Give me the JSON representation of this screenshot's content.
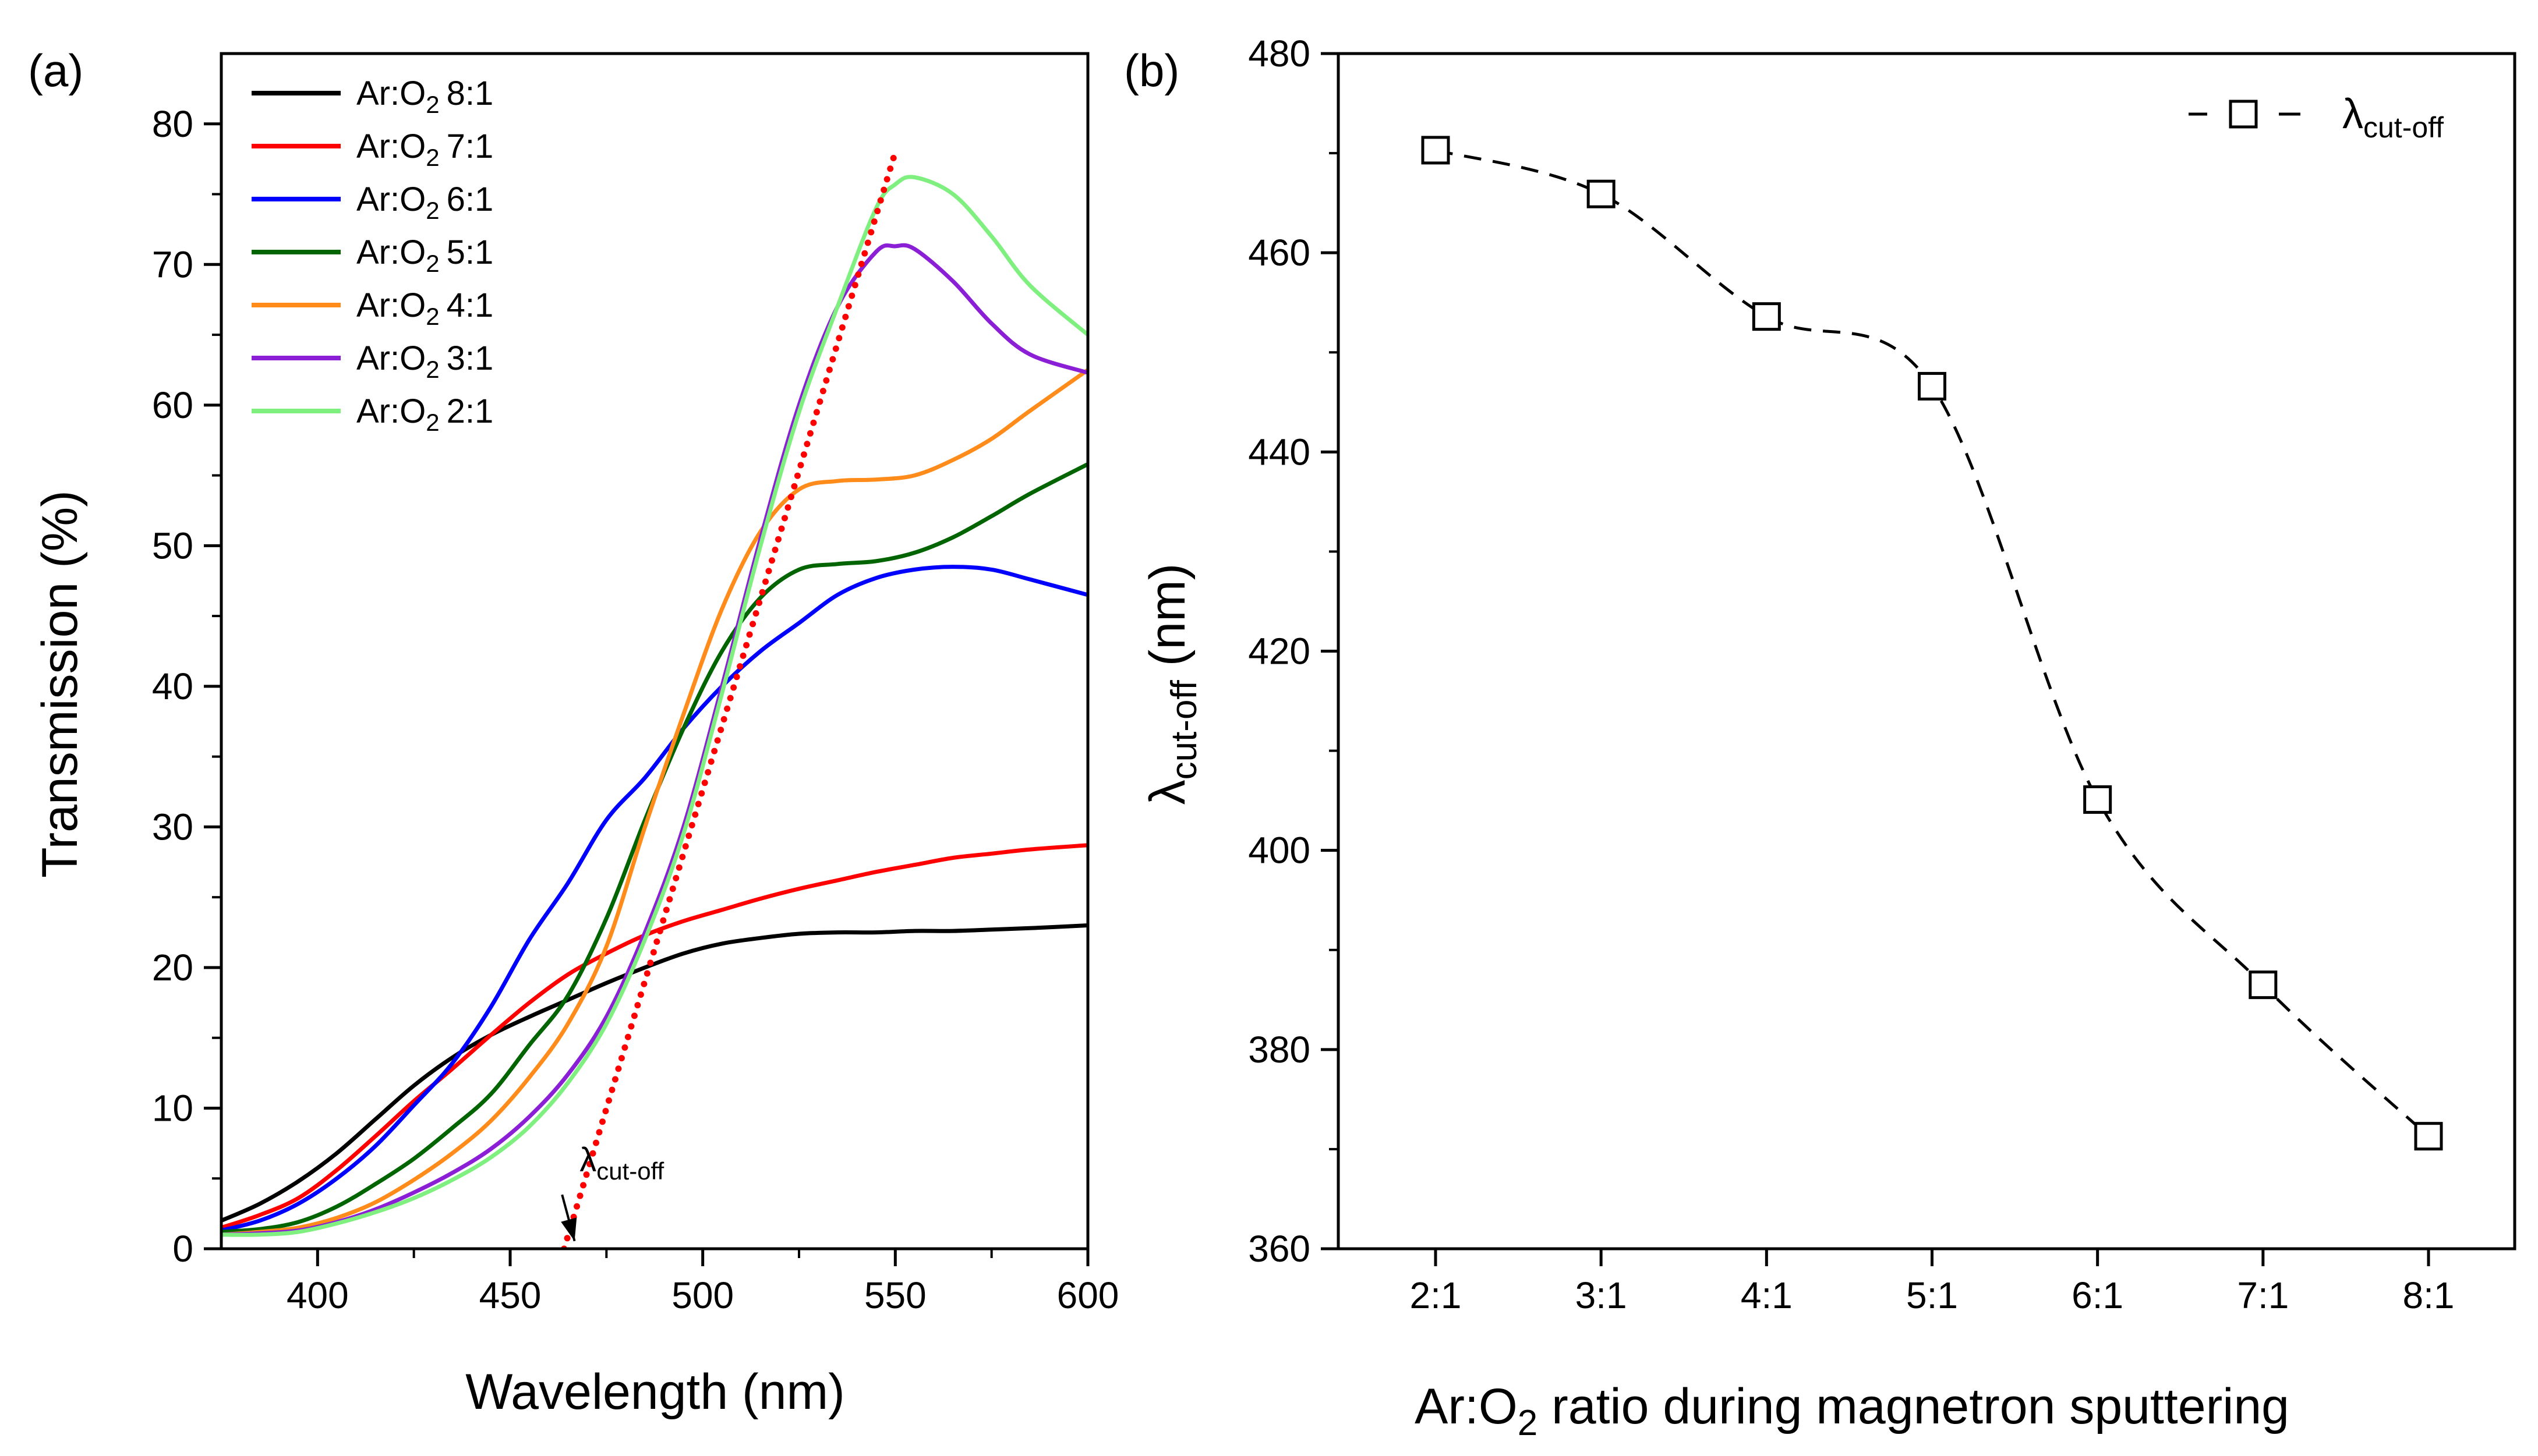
{
  "chart_data": [
    {
      "panel_label": "(a)",
      "type": "line",
      "xlabel": "Wavelength (nm)",
      "ylabel": "Transmission (%)",
      "xlim": [
        375,
        600
      ],
      "ylim": [
        0,
        85
      ],
      "xticks": [
        400,
        450,
        500,
        550,
        600
      ],
      "yticks": [
        0,
        10,
        20,
        30,
        40,
        50,
        60,
        70,
        80
      ],
      "grid": false,
      "legend_position": "top-left",
      "series": [
        {
          "name": "8:1",
          "color": "#000000",
          "x": [
            375,
            385,
            395,
            405,
            415,
            425,
            435,
            445,
            455,
            465,
            475,
            485,
            495,
            505,
            515,
            525,
            535,
            545,
            555,
            565,
            575,
            585,
            600
          ],
          "y": [
            2,
            3.2,
            4.8,
            6.8,
            9.2,
            11.6,
            13.6,
            15.2,
            16.5,
            17.7,
            18.9,
            20.0,
            21.0,
            21.7,
            22.1,
            22.4,
            22.5,
            22.5,
            22.6,
            22.6,
            22.7,
            22.8,
            23.0
          ]
        },
        {
          "name": "7:1",
          "color": "#ff0000",
          "x": [
            375,
            385,
            395,
            405,
            415,
            425,
            435,
            445,
            455,
            465,
            475,
            485,
            495,
            505,
            515,
            525,
            535,
            545,
            555,
            565,
            575,
            585,
            600
          ],
          "y": [
            1.5,
            2.4,
            3.6,
            5.6,
            8.0,
            10.5,
            12.8,
            15.2,
            17.5,
            19.5,
            21.0,
            22.3,
            23.3,
            24.1,
            24.9,
            25.6,
            26.2,
            26.8,
            27.3,
            27.8,
            28.1,
            28.4,
            28.7
          ]
        },
        {
          "name": "6:1",
          "color": "#0000ff",
          "x": [
            375,
            385,
            395,
            405,
            415,
            425,
            435,
            445,
            455,
            465,
            475,
            485,
            495,
            505,
            515,
            525,
            535,
            545,
            555,
            565,
            575,
            585,
            600
          ],
          "y": [
            1.3,
            2.0,
            3.2,
            5.0,
            7.3,
            10.2,
            13.2,
            17.2,
            22.0,
            26.0,
            30.5,
            33.5,
            37.0,
            40.0,
            42.5,
            44.5,
            46.5,
            47.7,
            48.3,
            48.5,
            48.3,
            47.6,
            46.5
          ]
        },
        {
          "name": "5:1",
          "color": "#006400",
          "x": [
            375,
            385,
            395,
            405,
            415,
            425,
            435,
            445,
            455,
            465,
            475,
            485,
            495,
            505,
            515,
            525,
            535,
            545,
            555,
            565,
            575,
            585,
            600
          ],
          "y": [
            1.2,
            1.4,
            1.9,
            3.0,
            4.6,
            6.4,
            8.6,
            11.0,
            14.5,
            18.0,
            23.5,
            30.5,
            37.0,
            42.5,
            46.3,
            48.3,
            48.7,
            48.9,
            49.5,
            50.6,
            52.1,
            53.7,
            55.8
          ]
        },
        {
          "name": "4:1",
          "color": "#ff8c1a",
          "x": [
            375,
            385,
            395,
            405,
            415,
            425,
            435,
            445,
            455,
            465,
            475,
            485,
            495,
            505,
            515,
            525,
            535,
            545,
            555,
            565,
            575,
            585,
            600
          ],
          "y": [
            1.0,
            1.2,
            1.5,
            2.2,
            3.3,
            4.9,
            6.8,
            9.1,
            12.2,
            16.0,
            21.5,
            30.0,
            38.0,
            45.5,
            51.0,
            54.0,
            54.6,
            54.7,
            55.0,
            56.1,
            57.6,
            59.6,
            62.5
          ]
        },
        {
          "name": "3:1",
          "color": "#8b1fd6",
          "x": [
            375,
            385,
            395,
            405,
            415,
            425,
            435,
            445,
            455,
            465,
            475,
            485,
            495,
            505,
            515,
            525,
            535,
            545,
            550,
            555,
            565,
            575,
            585,
            600
          ],
          "y": [
            1.0,
            1.1,
            1.3,
            1.9,
            2.8,
            4.0,
            5.4,
            7.1,
            9.4,
            12.4,
            16.5,
            22.5,
            30.0,
            40.0,
            50.5,
            60.0,
            67.0,
            70.9,
            71.3,
            71.1,
            68.8,
            65.8,
            63.6,
            62.3
          ]
        },
        {
          "name": "2:1",
          "color": "#7ff07f",
          "x": [
            375,
            385,
            395,
            405,
            415,
            425,
            435,
            445,
            455,
            465,
            475,
            485,
            495,
            505,
            515,
            525,
            535,
            545,
            550,
            555,
            565,
            575,
            585,
            600
          ],
          "y": [
            1.0,
            1.0,
            1.2,
            1.8,
            2.6,
            3.6,
            4.9,
            6.5,
            8.7,
            11.8,
            16.0,
            22.0,
            29.5,
            39.5,
            50.0,
            59.5,
            67.0,
            74.0,
            75.7,
            76.2,
            75.0,
            72.0,
            68.5,
            65.0
          ]
        }
      ],
      "legend_prefix": "Ar:O",
      "legend_subscript": "2",
      "fit_line": {
        "color": "#ff0000",
        "x": [
          464,
          550
        ],
        "y": [
          0,
          78
        ]
      },
      "annotation": {
        "symbol": "λ",
        "subscript": "cut-off",
        "text_x": 465,
        "text_y": 5.5,
        "arrow_to_x": 464,
        "arrow_to_y": 0.3
      }
    },
    {
      "panel_label": "(b)",
      "type": "scatter",
      "xlabel_prefix": "Ar:O",
      "xlabel_subscript": "2",
      "xlabel_suffix": " ratio during magnetron sputtering",
      "ylabel_symbol": "λ",
      "ylabel_subscript": "cut-off",
      "ylabel_suffix": " (nm)",
      "categories": [
        "2:1",
        "3:1",
        "4:1",
        "5:1",
        "6:1",
        "7:1",
        "8:1"
      ],
      "values": [
        470.3,
        465.9,
        453.6,
        446.6,
        405.1,
        386.5,
        371.3
      ],
      "ylim": [
        360,
        480
      ],
      "yticks": [
        360,
        380,
        400,
        420,
        440,
        460,
        480
      ],
      "grid": false,
      "legend_position": "top-right",
      "series_name_symbol": "λ",
      "series_name_subscript": "cut-off",
      "marker": "open-square",
      "line_style": "dashed"
    }
  ]
}
